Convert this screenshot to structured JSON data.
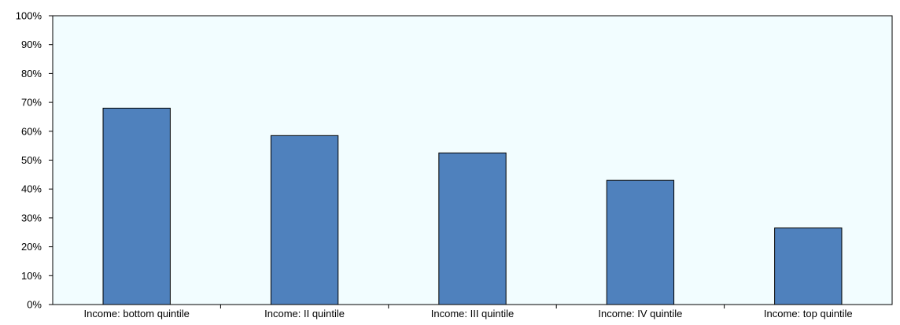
{
  "chart_data": {
    "type": "bar",
    "title": "",
    "xlabel": "",
    "ylabel": "",
    "categories": [
      "Income: bottom quintile",
      "Income: II quintile",
      "Income: III quintile",
      "Income: IV quintile",
      "Income: top quintile"
    ],
    "values": [
      68,
      58.5,
      52.5,
      43,
      26.5
    ],
    "ylim": [
      0,
      100
    ],
    "y_ticks": [
      0,
      10,
      20,
      30,
      40,
      50,
      60,
      70,
      80,
      90,
      100
    ],
    "y_tick_labels": [
      "0%",
      "10%",
      "20%",
      "30%",
      "40%",
      "50%",
      "60%",
      "70%",
      "80%",
      "90%",
      "100%"
    ],
    "grid": false,
    "legend": "none",
    "colors": {
      "bar_fill": "#4f81bd",
      "bar_stroke": "#000000",
      "plot_background": "#f2fdff",
      "axis": "#000000"
    }
  }
}
